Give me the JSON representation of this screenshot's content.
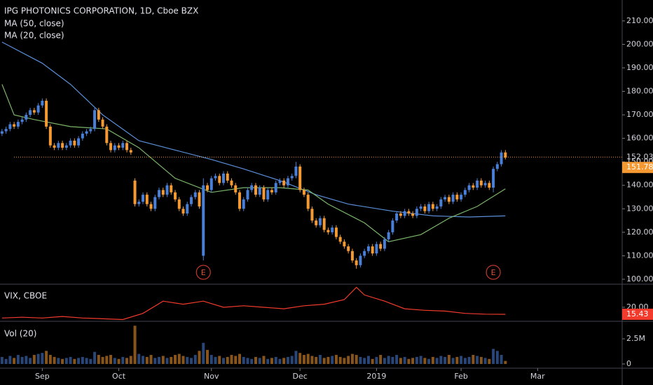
{
  "chart_data": {
    "type": "candlestick",
    "title": "IPG PHOTONICS CORPORATION, 1D, Cboe BZX",
    "indicator_labels": [
      "MA (50, close)",
      "MA (20, close)"
    ],
    "up_color": "#4a7fd8",
    "down_color": "#f59a33",
    "xlim": [
      -0.5,
      154
    ],
    "xticks": [
      {
        "value": 10,
        "label": "Sep"
      },
      {
        "value": 29,
        "label": "Oct"
      },
      {
        "value": 52,
        "label": "Nov"
      },
      {
        "value": 74,
        "label": "Dec"
      },
      {
        "value": 93,
        "label": "2019"
      },
      {
        "value": 114,
        "label": "Feb"
      },
      {
        "value": 133,
        "label": "Mar"
      }
    ],
    "ylim": [
      98.2,
      218.9
    ],
    "yticks": [
      {
        "value": 100,
        "label": "100.00"
      },
      {
        "value": 110,
        "label": "110.00"
      },
      {
        "value": 120,
        "label": "120.00"
      },
      {
        "value": 130,
        "label": "130.00"
      },
      {
        "value": 140,
        "label": "140.00"
      },
      {
        "value": 150,
        "label": "150.00"
      },
      {
        "value": 160,
        "label": "160.00"
      },
      {
        "value": 170,
        "label": "170.00"
      },
      {
        "value": 180,
        "label": "180.00"
      },
      {
        "value": 190,
        "label": "190.00"
      },
      {
        "value": 200,
        "label": "200.00"
      },
      {
        "value": 210,
        "label": "210.00"
      }
    ],
    "candles": [
      [
        162,
        164,
        161,
        163
      ],
      [
        163,
        165,
        162,
        164
      ],
      [
        164,
        167,
        163,
        166
      ],
      [
        166,
        167,
        164,
        165
      ],
      [
        165,
        168,
        164,
        167
      ],
      [
        167,
        169,
        166,
        168
      ],
      [
        168,
        171,
        167,
        170
      ],
      [
        170,
        173,
        169,
        172
      ],
      [
        172,
        173,
        170,
        171
      ],
      [
        171,
        175,
        170,
        174
      ],
      [
        174,
        177,
        173,
        176
      ],
      [
        176,
        177,
        164,
        165
      ],
      [
        165,
        166,
        156,
        157
      ],
      [
        157,
        158,
        155,
        156
      ],
      [
        156,
        159,
        155,
        158
      ],
      [
        158,
        159,
        155,
        156
      ],
      [
        156,
        158,
        155,
        157
      ],
      [
        157,
        160,
        156,
        159
      ],
      [
        159,
        160,
        156,
        157
      ],
      [
        157,
        161,
        156,
        160
      ],
      [
        160,
        163,
        159,
        162
      ],
      [
        162,
        164,
        161,
        163
      ],
      [
        163,
        165,
        162,
        164
      ],
      [
        164,
        173,
        163,
        172
      ],
      [
        172,
        173,
        167,
        168
      ],
      [
        168,
        169,
        164,
        165
      ],
      [
        165,
        166,
        157,
        158
      ],
      [
        158,
        159,
        154,
        155
      ],
      [
        155,
        158,
        154,
        157
      ],
      [
        157,
        158,
        155,
        156
      ],
      [
        156,
        159,
        155,
        158
      ],
      [
        158,
        159,
        154,
        155
      ],
      [
        155,
        156,
        153,
        154
      ],
      [
        142,
        143,
        131,
        132
      ],
      [
        132,
        134,
        131,
        133
      ],
      [
        133,
        137,
        132,
        136
      ],
      [
        136,
        137,
        131,
        132
      ],
      [
        132,
        133,
        129,
        130
      ],
      [
        130,
        136,
        129,
        135
      ],
      [
        135,
        139,
        134,
        138
      ],
      [
        138,
        139,
        135,
        136
      ],
      [
        136,
        141,
        135,
        140
      ],
      [
        140,
        141,
        136,
        137
      ],
      [
        137,
        138,
        133,
        134
      ],
      [
        134,
        135,
        129,
        130
      ],
      [
        130,
        131,
        127,
        128
      ],
      [
        128,
        133,
        127,
        132
      ],
      [
        132,
        136,
        131,
        135
      ],
      [
        135,
        138,
        134,
        137
      ],
      [
        137,
        138,
        130,
        131
      ],
      [
        110,
        143,
        108,
        140
      ],
      [
        140,
        141,
        137,
        138
      ],
      [
        138,
        144,
        137,
        143
      ],
      [
        143,
        145,
        142,
        144
      ],
      [
        144,
        145,
        140,
        141
      ],
      [
        141,
        146,
        140,
        145
      ],
      [
        145,
        146,
        141,
        142
      ],
      [
        142,
        143,
        139,
        140
      ],
      [
        140,
        141,
        136,
        137
      ],
      [
        137,
        138,
        129,
        130
      ],
      [
        130,
        135,
        129,
        134
      ],
      [
        134,
        139,
        133,
        138
      ],
      [
        138,
        141,
        137,
        140
      ],
      [
        140,
        141,
        135,
        136
      ],
      [
        136,
        140,
        135,
        139
      ],
      [
        139,
        140,
        133,
        134
      ],
      [
        134,
        139,
        133,
        138
      ],
      [
        138,
        139,
        136,
        137
      ],
      [
        137,
        142,
        136,
        141
      ],
      [
        141,
        143,
        140,
        142
      ],
      [
        142,
        143,
        139,
        140
      ],
      [
        140,
        144,
        139,
        143
      ],
      [
        143,
        145,
        142,
        144
      ],
      [
        144,
        150,
        143,
        148
      ],
      [
        148,
        149,
        137,
        138
      ],
      [
        138,
        139,
        135,
        136
      ],
      [
        136,
        137,
        129,
        130
      ],
      [
        130,
        131,
        124,
        125
      ],
      [
        125,
        126,
        122,
        123
      ],
      [
        123,
        127,
        122,
        126
      ],
      [
        126,
        127,
        120,
        121
      ],
      [
        121,
        122,
        119,
        120
      ],
      [
        120,
        123,
        119,
        122
      ],
      [
        122,
        123,
        117,
        118
      ],
      [
        118,
        119,
        115,
        116
      ],
      [
        116,
        117,
        113,
        114
      ],
      [
        114,
        115,
        111,
        112
      ],
      [
        112,
        113,
        107,
        108
      ],
      [
        108,
        109,
        104.5,
        106
      ],
      [
        106,
        111,
        105,
        110
      ],
      [
        110,
        113,
        109,
        112
      ],
      [
        112,
        115,
        111,
        114
      ],
      [
        114,
        115,
        110,
        111
      ],
      [
        111,
        116,
        110,
        115
      ],
      [
        115,
        116,
        112,
        113
      ],
      [
        113,
        118,
        112,
        117
      ],
      [
        117,
        121,
        116,
        120
      ],
      [
        120,
        126,
        119,
        125
      ],
      [
        125,
        129,
        124,
        128
      ],
      [
        128,
        129,
        126,
        127
      ],
      [
        127,
        130,
        126,
        129
      ],
      [
        129,
        130,
        127,
        128
      ],
      [
        128,
        129,
        126,
        127
      ],
      [
        127,
        131,
        126,
        130
      ],
      [
        130,
        132,
        129,
        131
      ],
      [
        131,
        132,
        128,
        129
      ],
      [
        129,
        133,
        128,
        132
      ],
      [
        132,
        133,
        129,
        130
      ],
      [
        130,
        132,
        129,
        131
      ],
      [
        131,
        135,
        130,
        134
      ],
      [
        134,
        136,
        133,
        135
      ],
      [
        135,
        136,
        132,
        133
      ],
      [
        133,
        137,
        132,
        136
      ],
      [
        136,
        137,
        133,
        134
      ],
      [
        134,
        137,
        133,
        136
      ],
      [
        136,
        139,
        135,
        138
      ],
      [
        138,
        141,
        137,
        140
      ],
      [
        140,
        141,
        138,
        139
      ],
      [
        139,
        143,
        138,
        142
      ],
      [
        142,
        143,
        139,
        140
      ],
      [
        140,
        142,
        139,
        141
      ],
      [
        141,
        142,
        138,
        139
      ],
      [
        139,
        148,
        137,
        147
      ],
      [
        147,
        150,
        146,
        149
      ],
      [
        149,
        155,
        148,
        154
      ],
      [
        154,
        155,
        151,
        151.78
      ]
    ],
    "ma50": {
      "color": "#5b8fd9",
      "x": [
        0,
        10,
        17,
        25,
        34,
        43,
        52,
        60,
        69,
        78,
        86,
        97,
        107,
        116,
        125
      ],
      "values": [
        201,
        192,
        183,
        170,
        159,
        155,
        151,
        147,
        142,
        136,
        132,
        129,
        127,
        126.5,
        127
      ]
    },
    "ma20": {
      "color": "#7cb56a",
      "x": [
        0,
        3,
        8,
        17,
        26,
        34,
        43,
        52,
        60,
        69,
        76,
        81,
        90,
        96,
        104,
        111,
        118,
        125
      ],
      "values": [
        183,
        170,
        168,
        165,
        164,
        156,
        143,
        137,
        139,
        139,
        138,
        132,
        124,
        116,
        119,
        126,
        131,
        138.5
      ]
    },
    "price_line": {
      "value": 152.03,
      "label": "152.03"
    },
    "last_price": {
      "value": 151.78,
      "label": "151.78"
    },
    "events": [
      {
        "index": 50,
        "label": "E"
      },
      {
        "index": 122,
        "label": "E"
      }
    ],
    "vix": {
      "title": "VIX, CBOE",
      "color": "#f23b2c",
      "ylim": [
        11.3,
        34.6
      ],
      "yticks": [
        {
          "value": 20,
          "label": "20.00"
        }
      ],
      "last": {
        "value": 15.43,
        "label": "15.43"
      },
      "x": [
        0,
        5,
        10,
        15,
        20,
        25,
        30,
        35,
        40,
        45,
        50,
        55,
        60,
        65,
        70,
        75,
        80,
        85,
        88,
        90,
        95,
        100,
        105,
        110,
        115,
        120,
        125
      ],
      "values": [
        13,
        13.5,
        13,
        14,
        13,
        12.5,
        12,
        16,
        24,
        22,
        24,
        20,
        21,
        20,
        19,
        21,
        22,
        25,
        33,
        28,
        24,
        19,
        18,
        17.5,
        16,
        15.5,
        15.43
      ]
    },
    "volume": {
      "title": "Vol (20)",
      "ylim": [
        -350000,
        4170000
      ],
      "yticks": [
        {
          "value": 0,
          "label": "0"
        },
        {
          "value": 2500000,
          "label": "2.5M"
        }
      ],
      "values": [
        700000,
        500000,
        800000,
        600000,
        900000,
        700000,
        800000,
        600000,
        900000,
        1000000,
        1100000,
        1300000,
        900000,
        700000,
        600000,
        500000,
        600000,
        700000,
        500000,
        600000,
        700000,
        600000,
        500000,
        1200000,
        900000,
        700000,
        800000,
        900000,
        600000,
        500000,
        700000,
        600000,
        800000,
        3800000,
        1000000,
        800000,
        700000,
        900000,
        600000,
        700000,
        800000,
        600000,
        700000,
        900000,
        1000000,
        800000,
        700000,
        600000,
        900000,
        1300000,
        2100000,
        1400000,
        900000,
        700000,
        800000,
        600000,
        700000,
        900000,
        800000,
        1000000,
        700000,
        600000,
        500000,
        700000,
        600000,
        800000,
        500000,
        600000,
        700000,
        500000,
        600000,
        700000,
        800000,
        1300000,
        1100000,
        900000,
        1000000,
        800000,
        700000,
        900000,
        600000,
        700000,
        800000,
        900000,
        700000,
        600000,
        800000,
        1000000,
        900000,
        700000,
        600000,
        800000,
        500000,
        700000,
        900000,
        600000,
        800000,
        700000,
        900000,
        600000,
        700000,
        500000,
        600000,
        700000,
        800000,
        600000,
        500000,
        700000,
        600000,
        800000,
        700000,
        900000,
        600000,
        700000,
        800000,
        600000,
        700000,
        900000,
        800000,
        700000,
        600000,
        500000,
        1500000,
        1300000,
        900000,
        300000
      ]
    }
  }
}
